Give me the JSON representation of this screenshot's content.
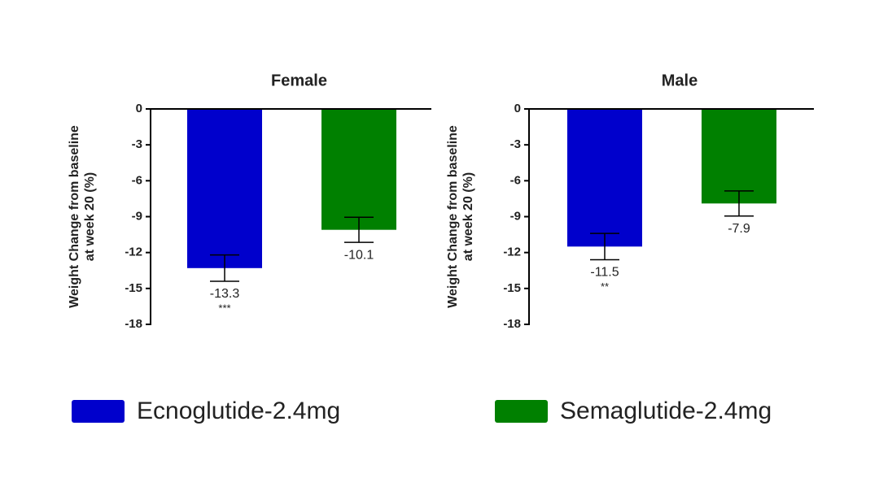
{
  "chart_data": [
    {
      "type": "bar",
      "title": "Female",
      "ylabel": [
        "Weight Change from baseline",
        "at week 20 (%)"
      ],
      "values": [
        -13.3,
        -10.1
      ],
      "errors": [
        1.1,
        1.05
      ],
      "significance": [
        "***",
        null
      ],
      "ylim": [
        -18,
        0
      ],
      "yticks": [
        0,
        -3,
        -6,
        -9,
        -12,
        -15,
        -18
      ]
    },
    {
      "type": "bar",
      "title": "Male",
      "ylabel": [
        "Weight Change from baseline",
        "at week 20 (%)"
      ],
      "values": [
        -11.5,
        -7.9
      ],
      "errors": [
        1.1,
        1.05
      ],
      "significance": [
        "**",
        null
      ],
      "ylim": [
        -18,
        0
      ],
      "yticks": [
        0,
        -3,
        -6,
        -9,
        -12,
        -15,
        -18
      ]
    }
  ],
  "legend": {
    "position": "bottom",
    "items": [
      {
        "name": "Ecnoglutide-2.4mg",
        "color": "#0000cc"
      },
      {
        "name": "Semaglutide-2.4mg",
        "color": "#008000"
      }
    ]
  }
}
